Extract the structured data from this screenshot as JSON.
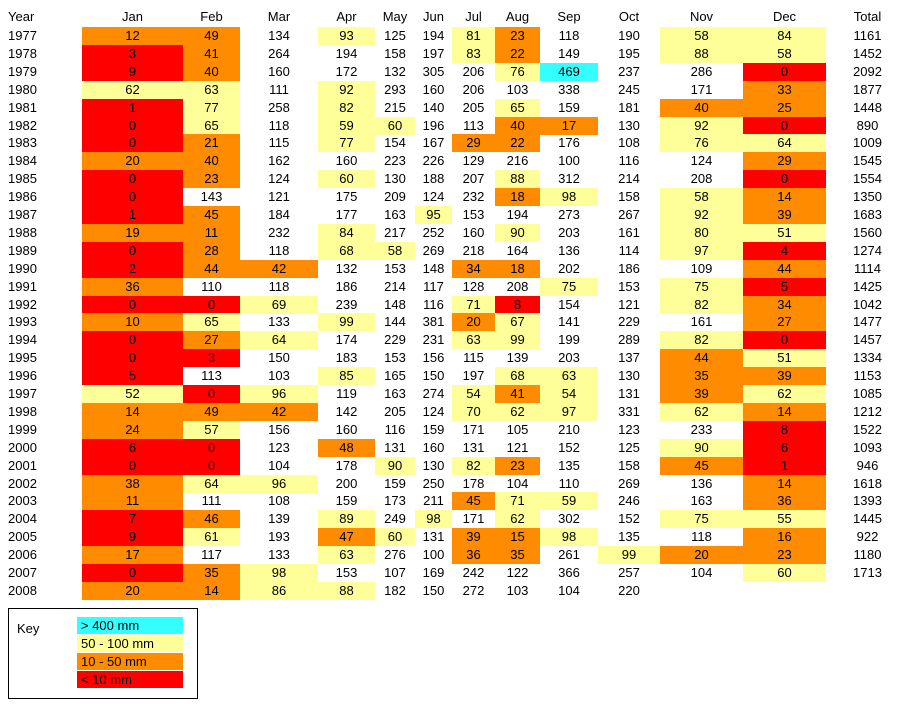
{
  "columns": [
    "Year",
    "Jan",
    "Feb",
    "Mar",
    "Apr",
    "May",
    "Jun",
    "Jul",
    "Aug",
    "Sep",
    "Oct",
    "Nov",
    "Dec",
    "Total"
  ],
  "rows": [
    {
      "year": 1977,
      "values": [
        12,
        49,
        134,
        93,
        125,
        194,
        81,
        23,
        118,
        190,
        58,
        84
      ],
      "total": 1161
    },
    {
      "year": 1978,
      "values": [
        3,
        41,
        264,
        194,
        158,
        197,
        83,
        22,
        149,
        195,
        88,
        58
      ],
      "total": 1452
    },
    {
      "year": 1979,
      "values": [
        9,
        40,
        160,
        172,
        132,
        305,
        206,
        76,
        469,
        237,
        286,
        0
      ],
      "total": 2092
    },
    {
      "year": 1980,
      "values": [
        62,
        63,
        111,
        92,
        293,
        160,
        206,
        103,
        338,
        245,
        171,
        33
      ],
      "total": 1877
    },
    {
      "year": 1981,
      "values": [
        1,
        77,
        258,
        82,
        215,
        140,
        205,
        65,
        159,
        181,
        40,
        25
      ],
      "total": 1448
    },
    {
      "year": 1982,
      "values": [
        0,
        65,
        118,
        59,
        60,
        196,
        113,
        40,
        17,
        130,
        92,
        0
      ],
      "total": 890
    },
    {
      "year": 1983,
      "values": [
        0,
        21,
        115,
        77,
        154,
        167,
        29,
        22,
        176,
        108,
        76,
        64
      ],
      "total": 1009
    },
    {
      "year": 1984,
      "values": [
        20,
        40,
        162,
        160,
        223,
        226,
        129,
        216,
        100,
        116,
        124,
        29
      ],
      "total": 1545
    },
    {
      "year": 1985,
      "values": [
        0,
        23,
        124,
        60,
        130,
        188,
        207,
        88,
        312,
        214,
        208,
        0
      ],
      "total": 1554
    },
    {
      "year": 1986,
      "values": [
        0,
        143,
        121,
        175,
        209,
        124,
        232,
        18,
        98,
        158,
        58,
        14
      ],
      "total": 1350
    },
    {
      "year": 1987,
      "values": [
        1,
        45,
        184,
        177,
        163,
        95,
        153,
        194,
        273,
        267,
        92,
        39
      ],
      "total": 1683
    },
    {
      "year": 1988,
      "values": [
        19,
        11,
        232,
        84,
        217,
        252,
        160,
        90,
        203,
        161,
        80,
        51
      ],
      "total": 1560
    },
    {
      "year": 1989,
      "values": [
        0,
        28,
        118,
        68,
        58,
        269,
        218,
        164,
        136,
        114,
        97,
        4
      ],
      "total": 1274
    },
    {
      "year": 1990,
      "values": [
        2,
        44,
        42,
        132,
        153,
        148,
        34,
        18,
        202,
        186,
        109,
        44
      ],
      "total": 1114
    },
    {
      "year": 1991,
      "values": [
        36,
        110,
        118,
        186,
        214,
        117,
        128,
        208,
        75,
        153,
        75,
        5
      ],
      "total": 1425
    },
    {
      "year": 1992,
      "values": [
        0,
        0,
        69,
        239,
        148,
        116,
        71,
        8,
        154,
        121,
        82,
        34
      ],
      "total": 1042
    },
    {
      "year": 1993,
      "values": [
        10,
        65,
        133,
        99,
        144,
        381,
        20,
        67,
        141,
        229,
        161,
        27
      ],
      "total": 1477
    },
    {
      "year": 1994,
      "values": [
        0,
        27,
        64,
        174,
        229,
        231,
        63,
        99,
        199,
        289,
        82,
        0
      ],
      "total": 1457
    },
    {
      "year": 1995,
      "values": [
        0,
        3,
        150,
        183,
        153,
        156,
        115,
        139,
        203,
        137,
        44,
        51
      ],
      "total": 1334
    },
    {
      "year": 1996,
      "values": [
        5,
        113,
        103,
        85,
        165,
        150,
        197,
        68,
        63,
        130,
        35,
        39
      ],
      "total": 1153
    },
    {
      "year": 1997,
      "values": [
        52,
        0,
        96,
        119,
        163,
        274,
        54,
        41,
        54,
        131,
        39,
        62
      ],
      "total": 1085
    },
    {
      "year": 1998,
      "values": [
        14,
        49,
        42,
        142,
        205,
        124,
        70,
        62,
        97,
        331,
        62,
        14
      ],
      "total": 1212
    },
    {
      "year": 1999,
      "values": [
        24,
        57,
        156,
        160,
        116,
        159,
        171,
        105,
        210,
        123,
        233,
        8
      ],
      "total": 1522
    },
    {
      "year": 2000,
      "values": [
        6,
        0,
        123,
        48,
        131,
        160,
        131,
        121,
        152,
        125,
        90,
        6
      ],
      "total": 1093
    },
    {
      "year": 2001,
      "values": [
        0,
        0,
        104,
        178,
        90,
        130,
        82,
        23,
        135,
        158,
        45,
        1
      ],
      "total": 946
    },
    {
      "year": 2002,
      "values": [
        38,
        64,
        96,
        200,
        159,
        250,
        178,
        104,
        110,
        269,
        136,
        14
      ],
      "total": 1618
    },
    {
      "year": 2003,
      "values": [
        11,
        111,
        108,
        159,
        173,
        211,
        45,
        71,
        59,
        246,
        163,
        36
      ],
      "total": 1393
    },
    {
      "year": 2004,
      "values": [
        7,
        46,
        139,
        89,
        249,
        98,
        171,
        62,
        302,
        152,
        75,
        55
      ],
      "total": 1445
    },
    {
      "year": 2005,
      "values": [
        9,
        61,
        193,
        47,
        60,
        131,
        39,
        15,
        98,
        135,
        118,
        16
      ],
      "total": 922
    },
    {
      "year": 2006,
      "values": [
        17,
        117,
        133,
        63,
        276,
        100,
        36,
        35,
        261,
        99,
        20,
        23
      ],
      "total": 1180
    },
    {
      "year": 2007,
      "values": [
        0,
        35,
        98,
        153,
        107,
        169,
        242,
        122,
        366,
        257,
        104,
        60
      ],
      "total": 1713
    },
    {
      "year": 2008,
      "values": [
        20,
        14,
        86,
        88,
        182,
        150,
        272,
        103,
        104,
        220,
        null,
        null
      ],
      "total": null
    }
  ],
  "key": {
    "title": "Key",
    "items": [
      {
        "label": "> 400 mm",
        "color": "#33ffff"
      },
      {
        "label": "50 - 100 mm",
        "color": "#ffff99"
      },
      {
        "label": "10 - 50 mm",
        "color": "#ff8c00"
      },
      {
        "label": "< 10 mm",
        "color": "#ff0000"
      }
    ]
  }
}
